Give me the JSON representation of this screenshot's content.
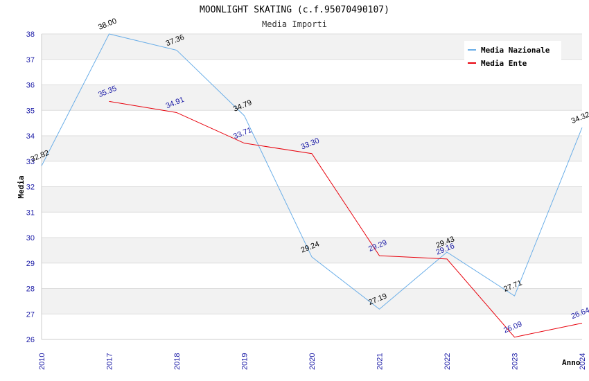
{
  "chart_data": {
    "type": "line",
    "title": "MOONLIGHT SKATING (c.f.95070490107)",
    "subtitle": "Media Importi",
    "xlabel": "Anno",
    "ylabel": "Media",
    "categories": [
      "2010",
      "2017",
      "2018",
      "2019",
      "2020",
      "2021",
      "2022",
      "2023",
      "2024"
    ],
    "ylim": [
      26,
      38
    ],
    "yticks": [
      26,
      27,
      28,
      29,
      30,
      31,
      32,
      33,
      34,
      35,
      36,
      37,
      38
    ],
    "grid": true,
    "legend_position": "top-right",
    "series": [
      {
        "name": "Media Nazionale",
        "color": "#6aaee8",
        "values": [
          32.82,
          38.0,
          37.36,
          34.79,
          29.24,
          27.19,
          29.43,
          27.71,
          34.32
        ],
        "labels": [
          "32.82",
          "38.00",
          "37.36",
          "34.79",
          "29.24",
          "27.19",
          "29.43",
          "27.71",
          "34.32"
        ]
      },
      {
        "name": "Media Ente",
        "color": "#e8000b",
        "values": [
          null,
          35.35,
          34.91,
          33.71,
          33.3,
          29.29,
          29.16,
          26.09,
          26.64
        ],
        "labels": [
          "",
          "35.35",
          "34.91",
          "33.71",
          "33.30",
          "29.29",
          "29.16",
          "26.09",
          "26.64"
        ]
      }
    ]
  }
}
